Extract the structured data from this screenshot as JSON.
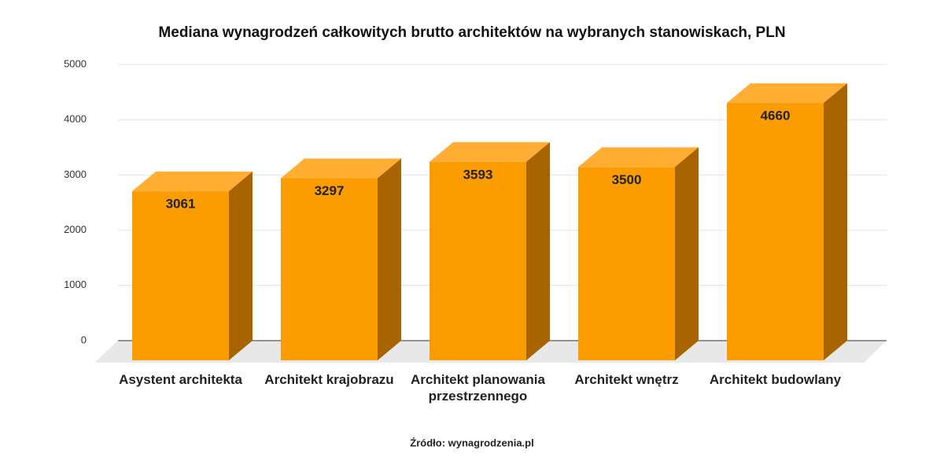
{
  "chart_data": {
    "type": "bar3d",
    "title": "Mediana wynagrodzeń całkowitych brutto architektów na wybranych stanowiskach, PLN",
    "categories": [
      "Asystent architekta",
      "Architekt krajobrazu",
      "Architekt planowania przestrzennego",
      "Architekt wnętrz",
      "Architekt budowlany"
    ],
    "values": [
      3061,
      3297,
      3593,
      3500,
      4660
    ],
    "color": "#fb9c00",
    "ylim": [
      0,
      5000
    ],
    "yticks": [
      0,
      1000,
      2000,
      3000,
      4000,
      5000
    ],
    "grid": true,
    "source": "Źródło: wynagrodzenia.pl"
  }
}
